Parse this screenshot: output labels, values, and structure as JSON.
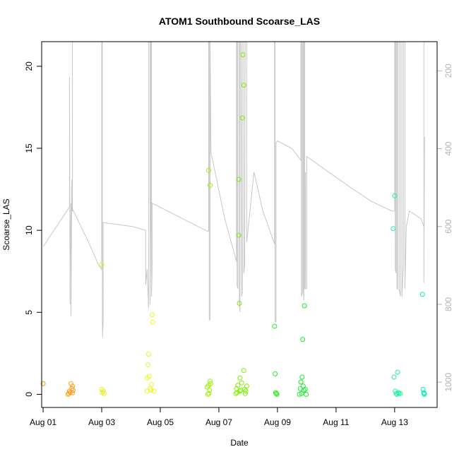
{
  "chart_data": {
    "type": "scatter",
    "title": "ATOM1 Southbound Scoarse_LAS",
    "xlabel": "Date",
    "ylabel": "Scoarse_LAS",
    "xlim": [
      -0.05,
      13.45
    ],
    "ylim": [
      -0.8,
      21.5
    ],
    "x_ticks": [
      {
        "value": 0,
        "label": "Aug 01"
      },
      {
        "value": 2,
        "label": "Aug 03"
      },
      {
        "value": 4,
        "label": "Aug 05"
      },
      {
        "value": 6,
        "label": "Aug 07"
      },
      {
        "value": 8,
        "label": "Aug 09"
      },
      {
        "value": 10,
        "label": "Aug 11"
      },
      {
        "value": 12,
        "label": "Aug 13"
      }
    ],
    "y_ticks": [
      0,
      5,
      10,
      15,
      20
    ],
    "right_axis": {
      "color": "#b5b5b5",
      "lim": [
        1065,
        125
      ],
      "ticks": [
        200,
        400,
        600,
        800,
        1000
      ]
    },
    "line_series": {
      "color": "#c8c8c8",
      "points": [
        [
          0.0,
          652
        ],
        [
          0.9,
          550
        ],
        [
          0.9,
          215
        ],
        [
          0.92,
          800
        ],
        [
          0.92,
          700
        ],
        [
          0.95,
          540
        ],
        [
          0.95,
          830
        ],
        [
          0.98,
          480
        ],
        [
          0.98,
          560
        ],
        [
          1.0,
          560
        ],
        [
          1.0,
          125
        ],
        [
          1.0,
          125
        ],
        [
          1.0,
          125
        ],
        [
          1.0,
          555
        ],
        [
          1.55,
          640
        ],
        [
          1.9,
          700
        ],
        [
          2.0,
          710
        ],
        [
          2.0,
          125
        ],
        [
          2.02,
          125
        ],
        [
          2.02,
          845
        ],
        [
          2.03,
          885
        ],
        [
          2.05,
          840
        ],
        [
          2.05,
          590
        ],
        [
          3.05,
          600
        ],
        [
          3.5,
          610
        ],
        [
          3.5,
          750
        ],
        [
          3.55,
          710
        ],
        [
          3.6,
          810
        ],
        [
          3.6,
          125
        ],
        [
          3.65,
          125
        ],
        [
          3.65,
          800
        ],
        [
          3.68,
          530
        ],
        [
          3.68,
          125
        ],
        [
          3.7,
          125
        ],
        [
          3.7,
          780
        ],
        [
          3.72,
          700
        ],
        [
          3.72,
          540
        ],
        [
          5.6,
          612
        ],
        [
          5.65,
          612
        ],
        [
          5.65,
          125
        ],
        [
          5.67,
          125
        ],
        [
          5.67,
          840
        ],
        [
          5.7,
          840
        ],
        [
          5.7,
          600
        ],
        [
          5.7,
          125
        ],
        [
          5.73,
          410
        ],
        [
          6.2,
          580
        ],
        [
          6.6,
          690
        ],
        [
          6.6,
          125
        ],
        [
          6.62,
          125
        ],
        [
          6.62,
          750
        ],
        [
          6.65,
          760
        ],
        [
          6.65,
          125
        ],
        [
          6.7,
          125
        ],
        [
          6.7,
          800
        ],
        [
          6.72,
          820
        ],
        [
          6.72,
          125
        ],
        [
          6.75,
          125
        ],
        [
          6.78,
          780
        ],
        [
          6.8,
          770
        ],
        [
          6.8,
          125
        ],
        [
          6.85,
          125
        ],
        [
          6.85,
          720
        ],
        [
          6.88,
          700
        ],
        [
          6.9,
          125
        ],
        [
          6.95,
          125
        ],
        [
          6.95,
          640
        ],
        [
          7.2,
          460
        ],
        [
          7.5,
          560
        ],
        [
          7.9,
          645
        ],
        [
          7.9,
          125
        ],
        [
          7.92,
          125
        ],
        [
          7.92,
          845
        ],
        [
          7.95,
          845
        ],
        [
          7.95,
          385
        ],
        [
          8.0,
          380
        ],
        [
          8.5,
          400
        ],
        [
          8.8,
          430
        ],
        [
          8.8,
          125
        ],
        [
          8.82,
          125
        ],
        [
          8.82,
          780
        ],
        [
          8.85,
          770
        ],
        [
          8.85,
          125
        ],
        [
          8.88,
          125
        ],
        [
          8.88,
          760
        ],
        [
          8.9,
          790
        ],
        [
          8.9,
          125
        ],
        [
          8.93,
          125
        ],
        [
          8.93,
          760
        ],
        [
          8.96,
          460
        ],
        [
          8.96,
          760
        ],
        [
          9.0,
          760
        ],
        [
          9.0,
          420
        ],
        [
          10.5,
          500
        ],
        [
          11.2,
          535
        ],
        [
          11.9,
          560
        ],
        [
          12.0,
          560
        ],
        [
          12.0,
          125
        ],
        [
          12.02,
          125
        ],
        [
          12.02,
          710
        ],
        [
          12.05,
          720
        ],
        [
          12.05,
          125
        ],
        [
          12.08,
          125
        ],
        [
          12.08,
          760
        ],
        [
          12.1,
          760
        ],
        [
          12.1,
          125
        ],
        [
          12.15,
          125
        ],
        [
          12.15,
          760
        ],
        [
          12.2,
          780
        ],
        [
          12.2,
          125
        ],
        [
          12.25,
          125
        ],
        [
          12.25,
          780
        ],
        [
          12.3,
          700
        ],
        [
          12.3,
          125
        ],
        [
          12.35,
          125
        ],
        [
          12.35,
          760
        ],
        [
          12.4,
          600
        ],
        [
          12.5,
          560
        ],
        [
          12.9,
          580
        ],
        [
          13.0,
          600
        ],
        [
          13.0,
          125
        ],
        [
          13.0,
          125
        ],
        [
          13.0,
          745
        ],
        [
          13.02,
          370
        ]
      ]
    },
    "points": [
      {
        "x": 0.0,
        "y": 0.65,
        "color": "#ff8c00"
      },
      {
        "x": 0.88,
        "y": 0.05,
        "color": "#ff9e1a"
      },
      {
        "x": 0.9,
        "y": 0.2,
        "color": "#ff9e1a"
      },
      {
        "x": 0.92,
        "y": 0.12,
        "color": "#ff9e1a"
      },
      {
        "x": 0.95,
        "y": 0.65,
        "color": "#ff9e1a"
      },
      {
        "x": 0.98,
        "y": 0.35,
        "color": "#ff9e1a"
      },
      {
        "x": 1.0,
        "y": 0.5,
        "color": "#ff9e1a"
      },
      {
        "x": 1.02,
        "y": 0.25,
        "color": "#ff9e1a"
      },
      {
        "x": 1.0,
        "y": 0.1,
        "color": "#ff9e1a"
      },
      {
        "x": 0.85,
        "y": 0.0,
        "color": "#ff9e1a"
      },
      {
        "x": 2.0,
        "y": 7.9,
        "color": "#e8ee20"
      },
      {
        "x": 2.0,
        "y": 0.3,
        "color": "#e8ee20"
      },
      {
        "x": 2.02,
        "y": 0.1,
        "color": "#e8ee20"
      },
      {
        "x": 2.05,
        "y": 0.2,
        "color": "#e8ee20"
      },
      {
        "x": 2.08,
        "y": 0.05,
        "color": "#e8ee20"
      },
      {
        "x": 3.55,
        "y": 1.0,
        "color": "#eaf71a"
      },
      {
        "x": 3.58,
        "y": 1.8,
        "color": "#eaf71a"
      },
      {
        "x": 3.6,
        "y": 2.45,
        "color": "#eaf71a"
      },
      {
        "x": 3.62,
        "y": 1.1,
        "color": "#eaf71a"
      },
      {
        "x": 3.65,
        "y": 0.35,
        "color": "#eaf71a"
      },
      {
        "x": 3.68,
        "y": 0.25,
        "color": "#eaf71a"
      },
      {
        "x": 3.7,
        "y": 0.6,
        "color": "#eaf71a"
      },
      {
        "x": 3.72,
        "y": 4.85,
        "color": "#eaf71a"
      },
      {
        "x": 3.75,
        "y": 4.4,
        "color": "#eaf71a"
      },
      {
        "x": 3.78,
        "y": 0.2,
        "color": "#eaf71a"
      },
      {
        "x": 3.55,
        "y": 0.2,
        "color": "#eaf71a"
      },
      {
        "x": 5.6,
        "y": 0.45,
        "color": "#9cf200"
      },
      {
        "x": 5.62,
        "y": 0.0,
        "color": "#9cf200"
      },
      {
        "x": 5.65,
        "y": 0.55,
        "color": "#9cf200"
      },
      {
        "x": 5.68,
        "y": 0.25,
        "color": "#9cf200"
      },
      {
        "x": 5.7,
        "y": 0.8,
        "color": "#9cf200"
      },
      {
        "x": 5.72,
        "y": 0.65,
        "color": "#9cf200"
      },
      {
        "x": 5.65,
        "y": 13.65,
        "color": "#9cf200"
      },
      {
        "x": 5.7,
        "y": 12.75,
        "color": "#9cf200"
      },
      {
        "x": 5.66,
        "y": 0.05,
        "color": "#9cf200"
      },
      {
        "x": 6.6,
        "y": 0.35,
        "color": "#7cf000"
      },
      {
        "x": 6.62,
        "y": 0.1,
        "color": "#7cf000"
      },
      {
        "x": 6.65,
        "y": 0.55,
        "color": "#7cf000"
      },
      {
        "x": 6.68,
        "y": 13.1,
        "color": "#7cf000"
      },
      {
        "x": 6.68,
        "y": 9.7,
        "color": "#7cf000"
      },
      {
        "x": 6.7,
        "y": 5.55,
        "color": "#7cf000"
      },
      {
        "x": 6.72,
        "y": 1.0,
        "color": "#7cf000"
      },
      {
        "x": 6.75,
        "y": 0.25,
        "color": "#7cf000"
      },
      {
        "x": 6.78,
        "y": 0.7,
        "color": "#7cf000"
      },
      {
        "x": 6.8,
        "y": 16.85,
        "color": "#7cf000"
      },
      {
        "x": 6.82,
        "y": 20.7,
        "color": "#7cf000"
      },
      {
        "x": 6.85,
        "y": 18.85,
        "color": "#7cf000"
      },
      {
        "x": 6.85,
        "y": 1.45,
        "color": "#7cf000"
      },
      {
        "x": 6.88,
        "y": 0.3,
        "color": "#7cf000"
      },
      {
        "x": 6.9,
        "y": 0.05,
        "color": "#7cf000"
      },
      {
        "x": 6.92,
        "y": 0.2,
        "color": "#7cf000"
      },
      {
        "x": 6.95,
        "y": 0.5,
        "color": "#7cf000"
      },
      {
        "x": 6.72,
        "y": 0.2,
        "color": "#7cf000"
      },
      {
        "x": 6.58,
        "y": 0.05,
        "color": "#7cf000"
      },
      {
        "x": 7.9,
        "y": 4.15,
        "color": "#2cee1c"
      },
      {
        "x": 7.92,
        "y": 1.25,
        "color": "#2cee1c"
      },
      {
        "x": 7.94,
        "y": 0.1,
        "color": "#2cee1c"
      },
      {
        "x": 7.96,
        "y": 0.05,
        "color": "#2cee1c"
      },
      {
        "x": 7.98,
        "y": 0.0,
        "color": "#2cee1c"
      },
      {
        "x": 8.78,
        "y": 0.35,
        "color": "#18ec2c"
      },
      {
        "x": 8.8,
        "y": 0.75,
        "color": "#18ec2c"
      },
      {
        "x": 8.82,
        "y": 0.05,
        "color": "#18ec2c"
      },
      {
        "x": 8.84,
        "y": 1.05,
        "color": "#18ec2c"
      },
      {
        "x": 8.86,
        "y": 3.35,
        "color": "#18ec2c"
      },
      {
        "x": 8.88,
        "y": 0.5,
        "color": "#18ec2c"
      },
      {
        "x": 8.9,
        "y": 0.25,
        "color": "#18ec2c"
      },
      {
        "x": 8.92,
        "y": 5.4,
        "color": "#18ec2c"
      },
      {
        "x": 8.95,
        "y": 0.3,
        "color": "#18ec2c"
      },
      {
        "x": 8.98,
        "y": 0.0,
        "color": "#18ec2c"
      },
      {
        "x": 8.75,
        "y": 0.0,
        "color": "#18ec2c"
      },
      {
        "x": 11.95,
        "y": 10.1,
        "color": "#1ef1a0"
      },
      {
        "x": 11.98,
        "y": 1.05,
        "color": "#1ef1a0"
      },
      {
        "x": 12.0,
        "y": 12.1,
        "color": "#1ef1a0"
      },
      {
        "x": 12.02,
        "y": 0.2,
        "color": "#1ef1a0"
      },
      {
        "x": 12.05,
        "y": 0.05,
        "color": "#1ef1a0"
      },
      {
        "x": 12.08,
        "y": 0.0,
        "color": "#1ef1a0"
      },
      {
        "x": 12.1,
        "y": 1.35,
        "color": "#1ef1a0"
      },
      {
        "x": 12.12,
        "y": 0.1,
        "color": "#1ef1a0"
      },
      {
        "x": 12.15,
        "y": 0.05,
        "color": "#1ef1a0"
      },
      {
        "x": 12.2,
        "y": 0.05,
        "color": "#1ef1a0"
      },
      {
        "x": 12.95,
        "y": 6.1,
        "color": "#10ecb4"
      },
      {
        "x": 12.97,
        "y": 0.3,
        "color": "#10ecb4"
      },
      {
        "x": 13.0,
        "y": 0.05,
        "color": "#10ecb4"
      },
      {
        "x": 13.02,
        "y": 0.0,
        "color": "#10ecb4"
      },
      {
        "x": 13.0,
        "y": 0.1,
        "color": "#10ecb4"
      }
    ]
  }
}
